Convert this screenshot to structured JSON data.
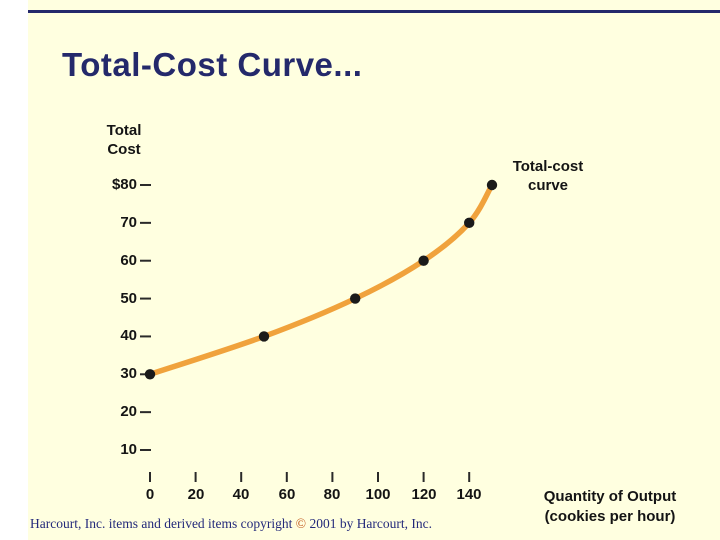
{
  "slide": {
    "title": "Total-Cost Curve...",
    "background_color": "#FFFFE0",
    "accent_color": "#24296B"
  },
  "footer": {
    "pre": "Harcourt, Inc. items and derived items copyright ",
    "symbol": "©",
    "post": " 2001 by Harcourt, Inc."
  },
  "chart_data": {
    "type": "line",
    "title": "Total-Cost Curve...",
    "y_axis_title_lines": [
      "Total",
      "Cost"
    ],
    "x_axis_title_lines": [
      "Quantity of Output",
      "(cookies per hour)"
    ],
    "curve_label_lines": [
      "Total-cost",
      "curve"
    ],
    "x_ticks": [
      0,
      20,
      40,
      60,
      80,
      100,
      120,
      140
    ],
    "y_ticks": [
      80,
      70,
      60,
      50,
      40,
      30,
      20,
      10
    ],
    "y_tick_labels": [
      "$80",
      "70",
      "60",
      "50",
      "40",
      "30",
      "20",
      "10"
    ],
    "points": [
      [
        0,
        30
      ],
      [
        50,
        40
      ],
      [
        90,
        50
      ],
      [
        120,
        60
      ],
      [
        140,
        70
      ],
      [
        150,
        80
      ]
    ],
    "xlim": [
      0,
      150
    ],
    "ylim": [
      0,
      85
    ],
    "grid": false,
    "legend": "none",
    "curve_color": "#F0A23C",
    "point_color": "#1A1A1A",
    "tick_color": "#2A2A2A"
  }
}
